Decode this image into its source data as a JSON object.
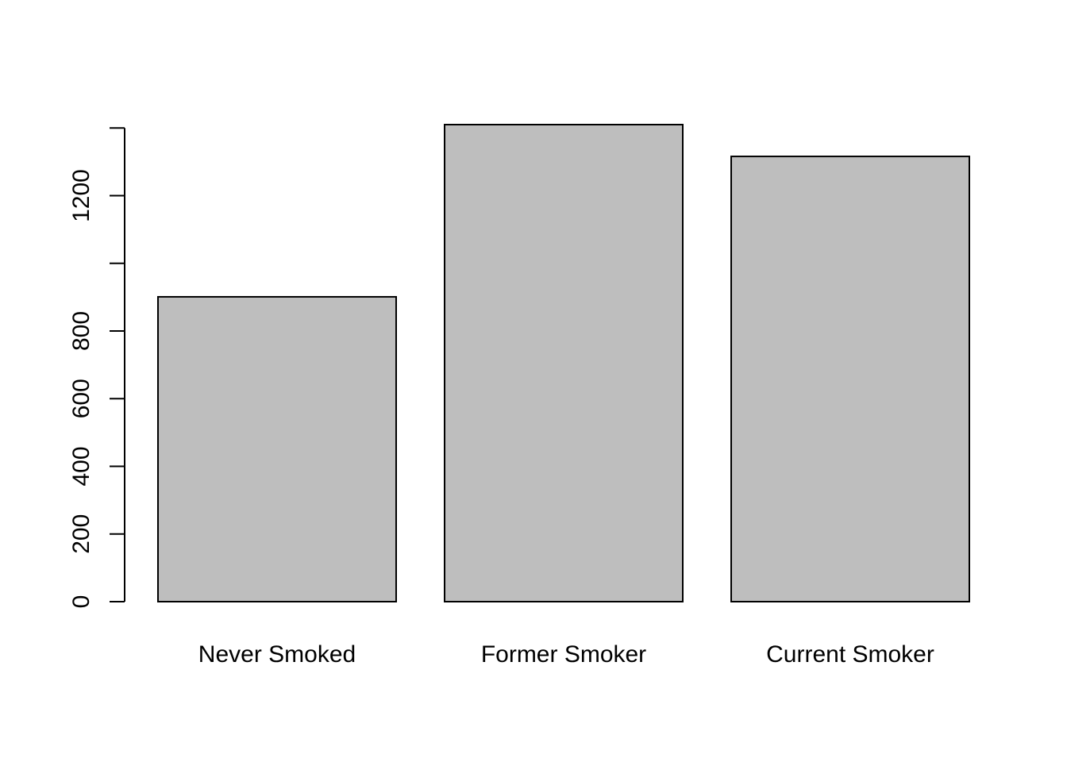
{
  "chart_data": {
    "type": "bar",
    "categories": [
      "Never Smoked",
      "Former Smoker",
      "Current Smoker"
    ],
    "values": [
      901,
      1410,
      1316
    ],
    "ylim": [
      0,
      1410
    ],
    "yticks": [
      0,
      200,
      400,
      600,
      800,
      1000,
      1200,
      1400
    ],
    "ytick_labels": [
      "0",
      "200",
      "400",
      "600",
      "800",
      "",
      "1200",
      ""
    ],
    "bar_color": "#bebebe",
    "border_color": "#000000",
    "grid": false
  }
}
